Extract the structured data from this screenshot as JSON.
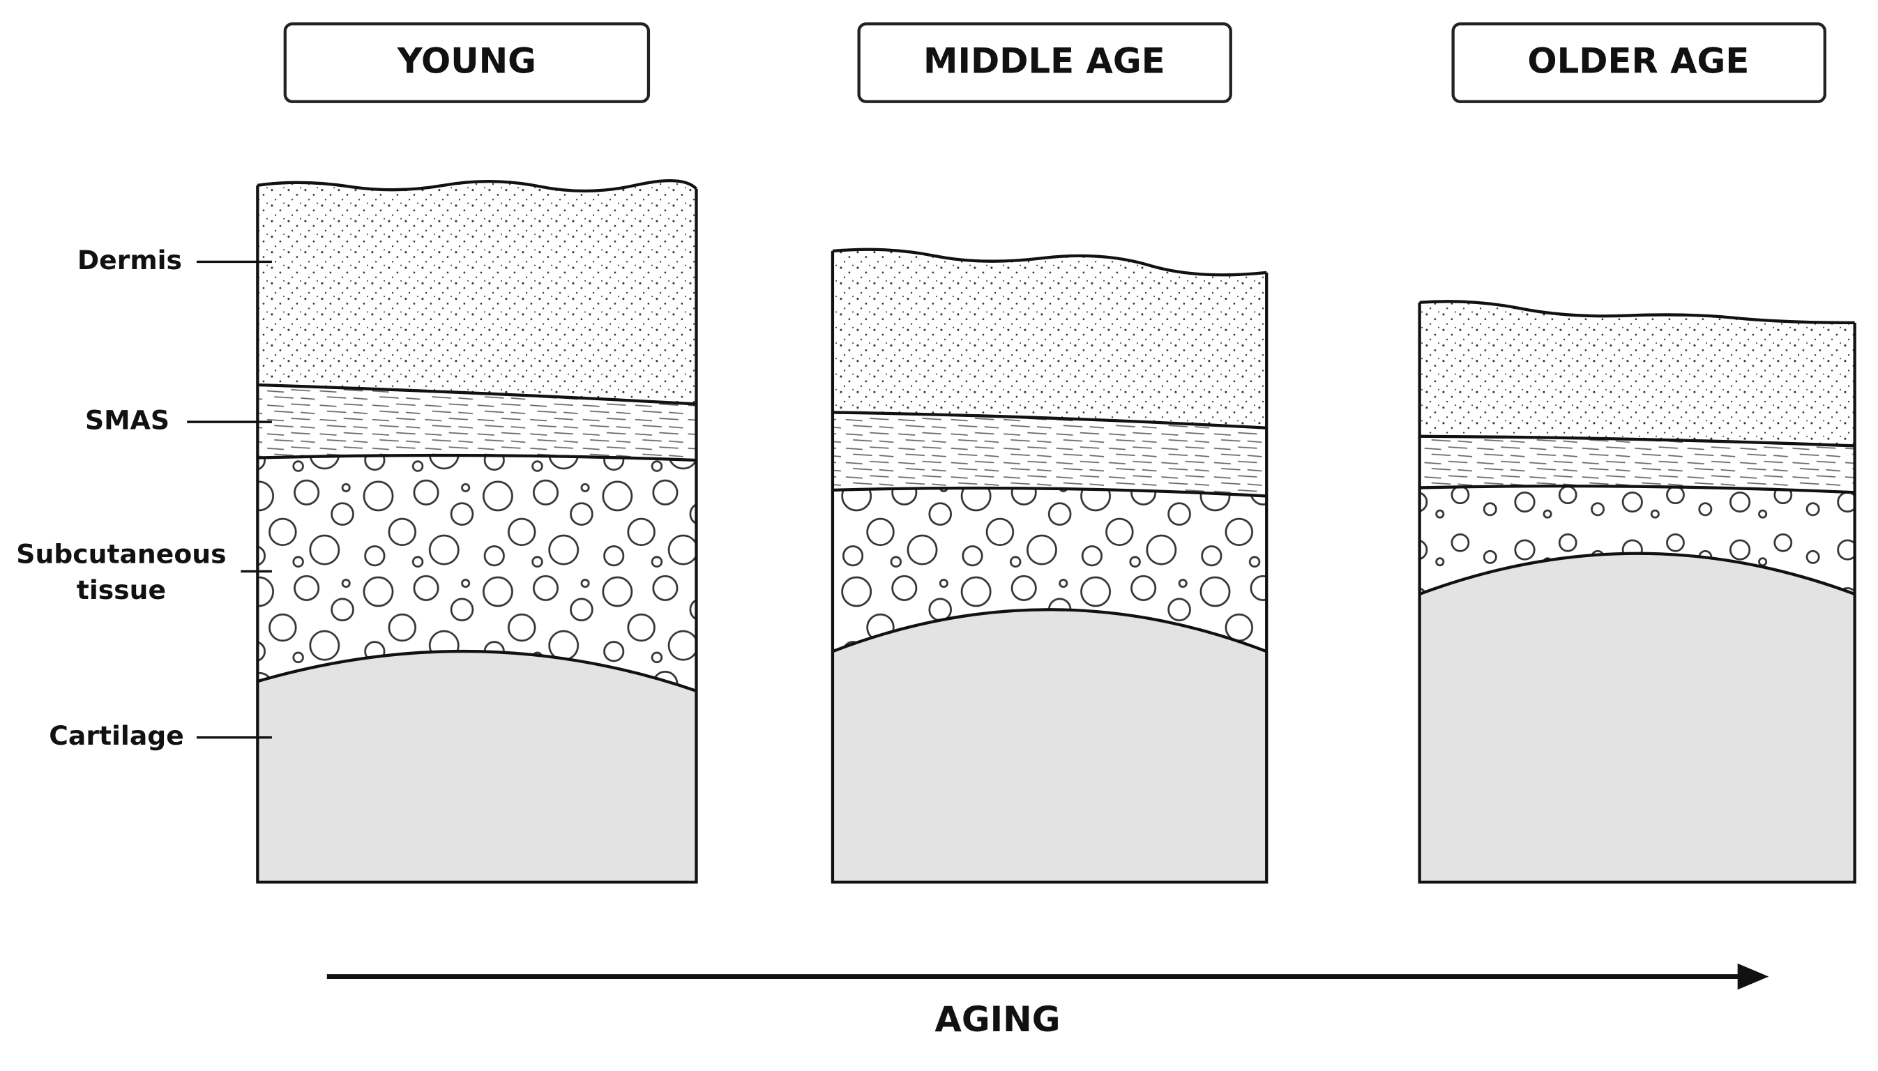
{
  "panels": [
    {
      "title": "YOUNG"
    },
    {
      "title": "MIDDLE AGE"
    },
    {
      "title": "OLDER AGE"
    }
  ],
  "labels": {
    "dermis": "Dermis",
    "smas": "SMAS",
    "subcutaneous": [
      "Subcutaneous",
      "tissue"
    ],
    "cartilage": "Cartilage"
  },
  "arrow_label": "AGING"
}
